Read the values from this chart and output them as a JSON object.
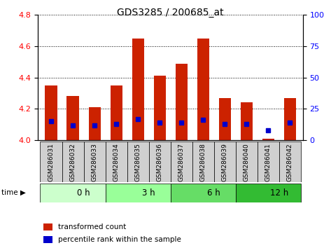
{
  "title": "GDS3285 / 200685_at",
  "samples": [
    "GSM286031",
    "GSM286032",
    "GSM286033",
    "GSM286034",
    "GSM286035",
    "GSM286036",
    "GSM286037",
    "GSM286038",
    "GSM286039",
    "GSM286040",
    "GSM286041",
    "GSM286042"
  ],
  "transformed_count": [
    4.35,
    4.28,
    4.21,
    4.35,
    4.65,
    4.41,
    4.49,
    4.65,
    4.27,
    4.24,
    4.01,
    4.27
  ],
  "percentile_rank": [
    15,
    12,
    12,
    13,
    17,
    14,
    14,
    16,
    13,
    13,
    8,
    14
  ],
  "group_labels": [
    "0 h",
    "3 h",
    "6 h",
    "12 h"
  ],
  "group_starts": [
    0,
    3,
    6,
    9
  ],
  "group_ends": [
    3,
    6,
    9,
    12
  ],
  "group_colors": [
    "#ccffcc",
    "#99ff99",
    "#66dd66",
    "#33bb33"
  ],
  "ylim_left": [
    4.0,
    4.8
  ],
  "ylim_right": [
    0,
    100
  ],
  "yticks_left": [
    4.0,
    4.2,
    4.4,
    4.6,
    4.8
  ],
  "yticks_right": [
    0,
    25,
    50,
    75,
    100
  ],
  "bar_color": "#cc2200",
  "dot_color": "#0000cc",
  "baseline": 4.0,
  "bar_width": 0.55,
  "title_fontsize": 10,
  "tick_fontsize": 8,
  "label_fontsize": 6.5,
  "time_fontsize": 8.5,
  "legend_fontsize": 7.5
}
